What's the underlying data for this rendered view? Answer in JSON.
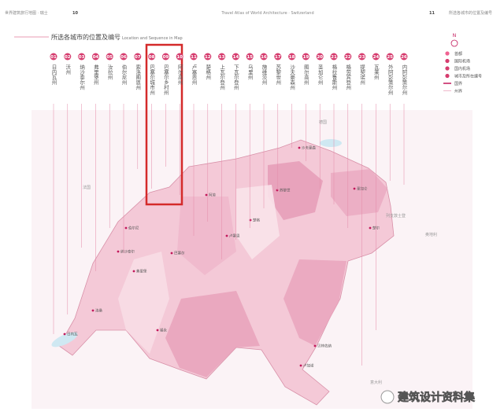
{
  "header": {
    "left": "世界建筑旅行地图 · 瑞士",
    "page_left": "10",
    "center": "Travel Atlas of World Architecture · Switzerland",
    "page_right": "11",
    "right": "所选各城市的位置及编号"
  },
  "title": {
    "zh": "所选各城市的位置及编号",
    "en": "Location and Sequence in Map"
  },
  "compass": "N",
  "legend": [
    "首都",
    "国际机场",
    "国内机场",
    "城市及所在编号",
    "国界",
    "州界"
  ],
  "markers": [
    {
      "number": "01",
      "label": "日内瓦州"
    },
    {
      "number": "02",
      "label": "沃州"
    },
    {
      "number": "03",
      "label": "纳沙泰尔州"
    },
    {
      "number": "04",
      "label": "弗里堡州"
    },
    {
      "number": "05",
      "label": "汝拉州"
    },
    {
      "number": "06",
      "label": "伯尔尼州"
    },
    {
      "number": "07",
      "label": "索洛图恩州"
    },
    {
      "number": "08",
      "label": "巴塞尔城市州"
    },
    {
      "number": "09",
      "label": "巴塞尔乡村州"
    },
    {
      "number": "10",
      "label": "阿尔高州"
    },
    {
      "number": "11",
      "label": "卢塞恩州"
    },
    {
      "number": "12",
      "label": "楚格州"
    },
    {
      "number": "13",
      "label": "上瓦尔登州"
    },
    {
      "number": "14",
      "label": "下瓦尔登州"
    },
    {
      "number": "15",
      "label": "乌里州"
    },
    {
      "number": "16",
      "label": "施维茨州"
    },
    {
      "number": "17",
      "label": "苏黎世州"
    },
    {
      "number": "18",
      "label": "沙夫豪森州"
    },
    {
      "number": "19",
      "label": "图尔高州"
    },
    {
      "number": "20",
      "label": "圣加仑州"
    },
    {
      "number": "21",
      "label": "格拉鲁斯州"
    },
    {
      "number": "22",
      "label": "格劳宾登州"
    },
    {
      "number": "23",
      "label": "提契诺州"
    },
    {
      "number": "24",
      "label": "瓦莱州"
    },
    {
      "number": "25",
      "label": "外阿彭策尔州"
    },
    {
      "number": "26",
      "label": "内阿彭策尔州"
    }
  ],
  "cities": [
    "日内瓦",
    "洛桑",
    "纳沙泰尔",
    "弗里堡",
    "伯尔尼",
    "巴塞尔",
    "阿劳",
    "卢塞恩",
    "楚格",
    "苏黎世",
    "沙夫豪森",
    "圣加仑",
    "楚尔",
    "锡永",
    "卢加诺",
    "贝林佐纳"
  ],
  "neighbors": [
    "德国",
    "法国",
    "列支敦士登",
    "奥地利",
    "意大利"
  ],
  "watermark": "建筑设计资料集"
}
